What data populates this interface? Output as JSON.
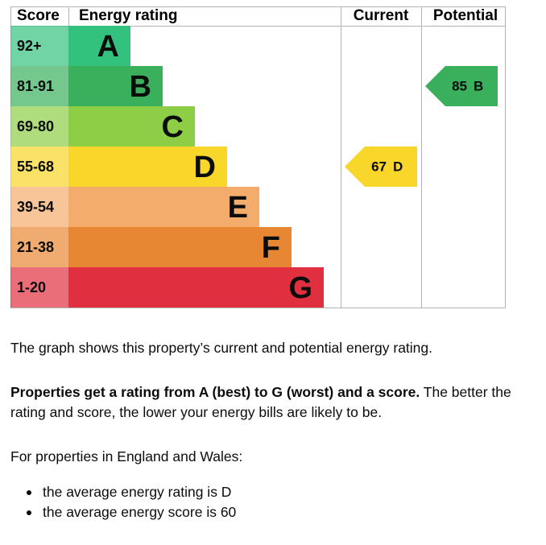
{
  "headers": [
    "Score",
    "Energy rating",
    "Current",
    "Potential"
  ],
  "bands": [
    {
      "score": "92+",
      "letter": "A",
      "color": "#33c27d"
    },
    {
      "score": "81-91",
      "letter": "B",
      "color": "#3bb05c"
    },
    {
      "score": "69-80",
      "letter": "C",
      "color": "#8dce46"
    },
    {
      "score": "55-68",
      "letter": "D",
      "color": "#f8d62a"
    },
    {
      "score": "39-54",
      "letter": "E",
      "color": "#f4ac6c"
    },
    {
      "score": "21-38",
      "letter": "F",
      "color": "#e88733"
    },
    {
      "score": "1-20",
      "letter": "G",
      "color": "#e03040"
    }
  ],
  "current": {
    "score": 67,
    "rating": "D"
  },
  "potential": {
    "score": 85,
    "rating": "B"
  },
  "text": {
    "intro": "The graph shows this property’s current and potential energy rating.",
    "rating_bold": "Properties get a rating from A (best) to G (worst) and a score.",
    "rating_rest": "The better the rating and score, the lower your energy bills are likely to be.",
    "region": "For properties in England and Wales:",
    "bullets": [
      "the average energy rating is D",
      "the average energy score is 60"
    ]
  }
}
